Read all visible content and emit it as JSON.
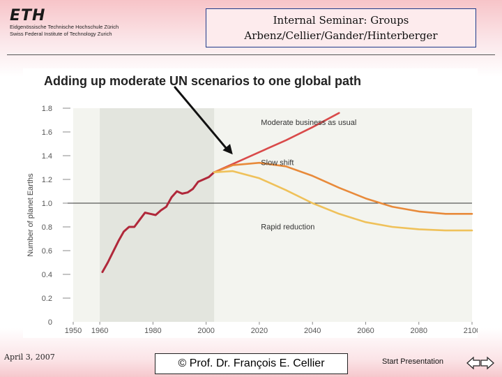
{
  "header": {
    "logo_mark": "ETH",
    "logo_line1": "Eidgenössische Technische Hochschule Zürich",
    "logo_line2": "Swiss Federal Institute of Technology Zurich",
    "title_line1": "Internal Seminar: Groups",
    "title_line2": "Arbenz/Cellier/Gander/Hinterberger"
  },
  "footer": {
    "date": "April 3, 2007",
    "copyright": "© Prof. Dr. François E. Cellier",
    "start_link": "Start Presentation",
    "prev_icon": "left-arrow-icon",
    "next_icon": "right-arrow-icon"
  },
  "chart_data": {
    "type": "line",
    "title": "Adding up moderate UN scenarios to one global path",
    "xlabel": "",
    "ylabel": "Number of planet Earths",
    "xlim": [
      1950,
      2100
    ],
    "ylim": [
      0,
      1.8
    ],
    "xticks": [
      "1950",
      "1960",
      "1980",
      "2000",
      "2020",
      "2040",
      "2060",
      "2080",
      "2100"
    ],
    "yticks": [
      "0",
      "0.2",
      "0.4",
      "0.6",
      "0.8",
      "1.0",
      "1.2",
      "1.4",
      "1.6",
      "1.8"
    ],
    "reference_line": 1.0,
    "historical_shaded_range": [
      1960,
      2003
    ],
    "colors": {
      "historical": "#b0283a",
      "business_as_usual": "#d94a4a",
      "slow_shift": "#e88a3a",
      "rapid_reduction": "#efc15a",
      "shade": "#e3e5de"
    },
    "series": [
      {
        "name": "",
        "x": [
          1961,
          1963,
          1965,
          1967,
          1969,
          1971,
          1973,
          1975,
          1977,
          1979,
          1981,
          1983,
          1985,
          1987,
          1989,
          1991,
          1993,
          1995,
          1997,
          1999,
          2001,
          2003
        ],
        "values": [
          0.42,
          0.5,
          0.59,
          0.68,
          0.76,
          0.8,
          0.8,
          0.86,
          0.92,
          0.91,
          0.9,
          0.94,
          0.97,
          1.05,
          1.1,
          1.08,
          1.09,
          1.12,
          1.18,
          1.2,
          1.22,
          1.26
        ]
      },
      {
        "name": "Moderate business as usual",
        "x": [
          2003,
          2010,
          2020,
          2030,
          2040,
          2050
        ],
        "values": [
          1.26,
          1.33,
          1.43,
          1.53,
          1.64,
          1.76
        ]
      },
      {
        "name": "Slow shift",
        "x": [
          2003,
          2010,
          2020,
          2030,
          2040,
          2050,
          2060,
          2070,
          2080,
          2090,
          2100
        ],
        "values": [
          1.26,
          1.32,
          1.34,
          1.31,
          1.23,
          1.13,
          1.04,
          0.97,
          0.93,
          0.91,
          0.91
        ]
      },
      {
        "name": "Rapid reduction",
        "x": [
          2003,
          2010,
          2020,
          2030,
          2040,
          2050,
          2060,
          2070,
          2080,
          2090,
          2100
        ],
        "values": [
          1.26,
          1.27,
          1.21,
          1.11,
          1.0,
          0.91,
          0.84,
          0.8,
          0.78,
          0.77,
          0.77
        ]
      }
    ],
    "annotation": {
      "type": "arrow",
      "target_x": 2010,
      "target_y": 1.41
    }
  }
}
